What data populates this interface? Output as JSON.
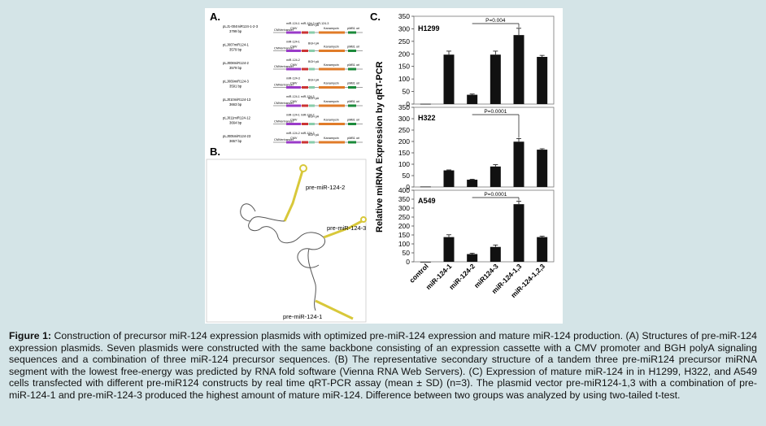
{
  "figure": {
    "panel_labels": {
      "a": "A.",
      "b": "B.",
      "c": "C."
    },
    "plasmids": [
      {
        "name": "pLJ1-004miR124-1-2-3",
        "size": "3799 bp",
        "insert": "miR-124-1 miR-124-2 miR-124-3"
      },
      {
        "name": "pLJ007miR124-1",
        "size": "3579 bp",
        "insert": "miR-124-1"
      },
      {
        "name": "pLJ008miR124-2",
        "size": "3579 bp",
        "insert": "miR-124-2"
      },
      {
        "name": "pLJ009miR124-3",
        "size": "3591 bp",
        "insert": "miR-124-3"
      },
      {
        "name": "pLJ010miR124-13",
        "size": "3663 bp",
        "insert": "miR-124-1 miR-124-3"
      },
      {
        "name": "pLJ011miR124-12",
        "size": "3664 bp",
        "insert": "miR-124-1 miR-124-2"
      },
      {
        "name": "pLJ005miR124-23",
        "size": "3657 bp",
        "insert": "miR-124-2 miR-124-3"
      }
    ],
    "map_features": {
      "enhancer": "CMVenhancer",
      "promoter": "CMV",
      "polyA": "BGH pA",
      "resistance": "Kanamycin",
      "ori": "pMB1 ori"
    },
    "structure_labels": [
      "pre-miR-124-2",
      "pre-miR-124-3",
      "pre-miR-124-1"
    ],
    "colors": {
      "panel_bg": "#ffffff",
      "page_bg": "#d4e4e7",
      "bar": "#111111",
      "rna": "#d8c83a",
      "kan": "#e07b28",
      "cmv": "#9a3bc8"
    }
  },
  "chart_data": [
    {
      "type": "bar",
      "title": "H1299",
      "ylabel": "Relative miRNA Expression by qRT-PCR",
      "categories": [
        "control",
        "miR-124-1",
        "miR-124-2",
        "miR124-3",
        "miR-124-1,3",
        "miR-124-1,2,3"
      ],
      "values": [
        1,
        197,
        37,
        197,
        275,
        188
      ],
      "errors": [
        0,
        14,
        3,
        14,
        27,
        6
      ],
      "ylim": [
        0,
        350
      ],
      "yticks": [
        "0",
        "50",
        "100",
        "150",
        "200",
        "250",
        "300",
        "350"
      ],
      "annotation": "P=0.004"
    },
    {
      "type": "bar",
      "title": "H322",
      "categories": [
        "control",
        "miR-124-1",
        "miR-124-2",
        "miR124-3",
        "miR-124-1,3",
        "miR-124-1,2,3"
      ],
      "values": [
        2,
        73,
        32,
        90,
        199,
        164
      ],
      "errors": [
        0,
        2,
        2,
        8,
        14,
        4
      ],
      "ylim": [
        0,
        350
      ],
      "yticks": [
        "0",
        "50",
        "100",
        "150",
        "200",
        "250",
        "300",
        "350"
      ],
      "annotation": "P=0.0001"
    },
    {
      "type": "bar",
      "title": "A549",
      "categories": [
        "control",
        "miR-124-1",
        "miR-124-2",
        "miR124-3",
        "miR-124-1,3",
        "miR-124-1,2,3"
      ],
      "values": [
        0,
        138,
        43,
        83,
        322,
        138
      ],
      "errors": [
        0,
        13,
        5,
        11,
        16,
        5
      ],
      "ylim": [
        0,
        400
      ],
      "yticks": [
        "0",
        "50",
        "100",
        "150",
        "200",
        "250",
        "300",
        "350",
        "400"
      ],
      "annotation": "P=0.0001"
    }
  ],
  "caption": {
    "label": "Figure 1:",
    "text": " Construction of precursor miR-124 expression plasmids with optimized pre-miR-124 expression and mature miR-124 production. (A) Structures of pre-miR-124 expression plasmids. Seven plasmids were constructed with the same backbone consisting of an expression cassette with a CMV promoter and BGH polyA signaling sequences and a combination of three miR-124 precursor sequences. (B) The representative secondary structure of a tandem three pre-miR124 precursor miRNA segment with the lowest free-energy was predicted by RNA fold software (Vienna RNA Web Servers). (C) Expression of mature miR-124 in in H1299, H322, and A549 cells transfected with different pre-miR124 constructs by real time qRT-PCR assay (mean ± SD) (n=3). The plasmid vector pre-miR124-1,3 with a combination of pre-miR-124-1 and pre-miR-124-3 produced the highest amount of mature miR-124. Difference between two groups was analyzed by using two-tailed t-test."
  }
}
